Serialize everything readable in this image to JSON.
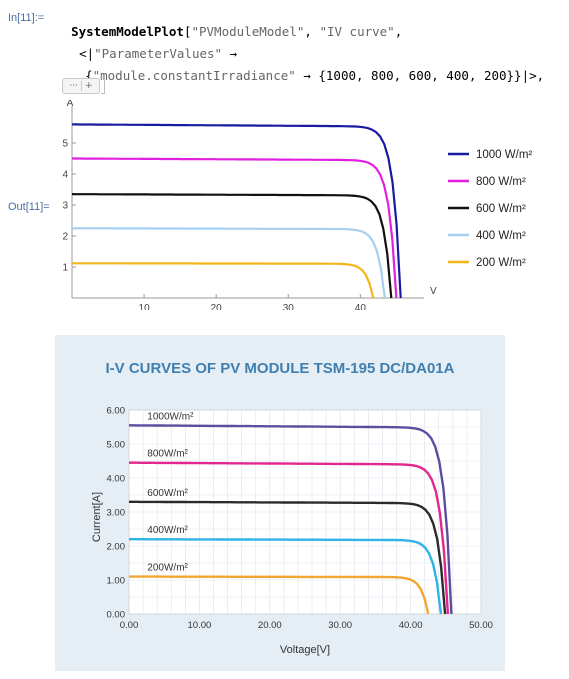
{
  "notebook": {
    "in_label": "In[11]:=",
    "out_label": "Out[11]=",
    "code_func": "SystemModelPlot",
    "code_open": "[",
    "code_arg1": "\"PVModuleModel\"",
    "code_sep": ", ",
    "code_arg2": "\"IV curve\"",
    "code_tail1": ",",
    "code_line2_open": "<|",
    "code_line2_key": "\"ParameterValues\"",
    "code_line2_arrow": " →",
    "code_line3_open": "{",
    "code_line3_key": "\"module.constantIrradiance\"",
    "code_line3_rest": " → {1000, 800, 600, 400, 200}}|>,",
    "chip_dots": "···",
    "chip_plus": "+"
  },
  "chart_data": [
    {
      "type": "line",
      "xlabel": "V",
      "ylabel": "A",
      "xlim": [
        0,
        48
      ],
      "ylim": [
        0,
        6
      ],
      "xticks": [
        10,
        20,
        30,
        40
      ],
      "yticks": [
        1,
        2,
        3,
        4,
        5
      ],
      "grid": false,
      "legend_position": "right",
      "series": [
        {
          "name": "1000 W/m²",
          "color": "#1a1aa0",
          "isc": 5.6,
          "voc": 45.6
        },
        {
          "name": "800 W/m²",
          "color": "#e01fe0",
          "isc": 4.5,
          "voc": 45.0
        },
        {
          "name": "600 W/m²",
          "color": "#111111",
          "isc": 3.35,
          "voc": 44.3
        },
        {
          "name": "400 W/m²",
          "color": "#a6cff0",
          "isc": 2.25,
          "voc": 43.4
        },
        {
          "name": "200 W/m²",
          "color": "#f2b51b",
          "isc": 1.12,
          "voc": 41.8
        }
      ]
    },
    {
      "type": "line",
      "title": "I-V CURVES OF PV MODULE TSM-195 DC/DA01A",
      "xlabel": "Voltage[V]",
      "ylabel": "Current[A]",
      "xlim": [
        0,
        50
      ],
      "ylim": [
        0,
        6
      ],
      "xticks": [
        "0.00",
        "10.00",
        "20.00",
        "30.00",
        "40.00",
        "50.00"
      ],
      "yticks": [
        "0.00",
        "1.00",
        "2.00",
        "3.00",
        "4.00",
        "5.00",
        "6.00"
      ],
      "grid": true,
      "series": [
        {
          "name": "1000W/m²",
          "color": "#5a4f9e",
          "isc": 5.55,
          "voc": 45.8
        },
        {
          "name": "800W/m²",
          "color": "#e3268f",
          "isc": 4.45,
          "voc": 45.3
        },
        {
          "name": "600W/m²",
          "color": "#2b2b2b",
          "isc": 3.3,
          "voc": 44.9
        },
        {
          "name": "400W/m²",
          "color": "#2fb3e6",
          "isc": 2.2,
          "voc": 44.3
        },
        {
          "name": "200W/m²",
          "color": "#f2a632",
          "isc": 1.1,
          "voc": 42.5
        }
      ]
    }
  ],
  "colors": {
    "cell_label": "#4a6ea0",
    "photo_bg": "#e6eef5",
    "photo_title": "#3f7fb0"
  }
}
